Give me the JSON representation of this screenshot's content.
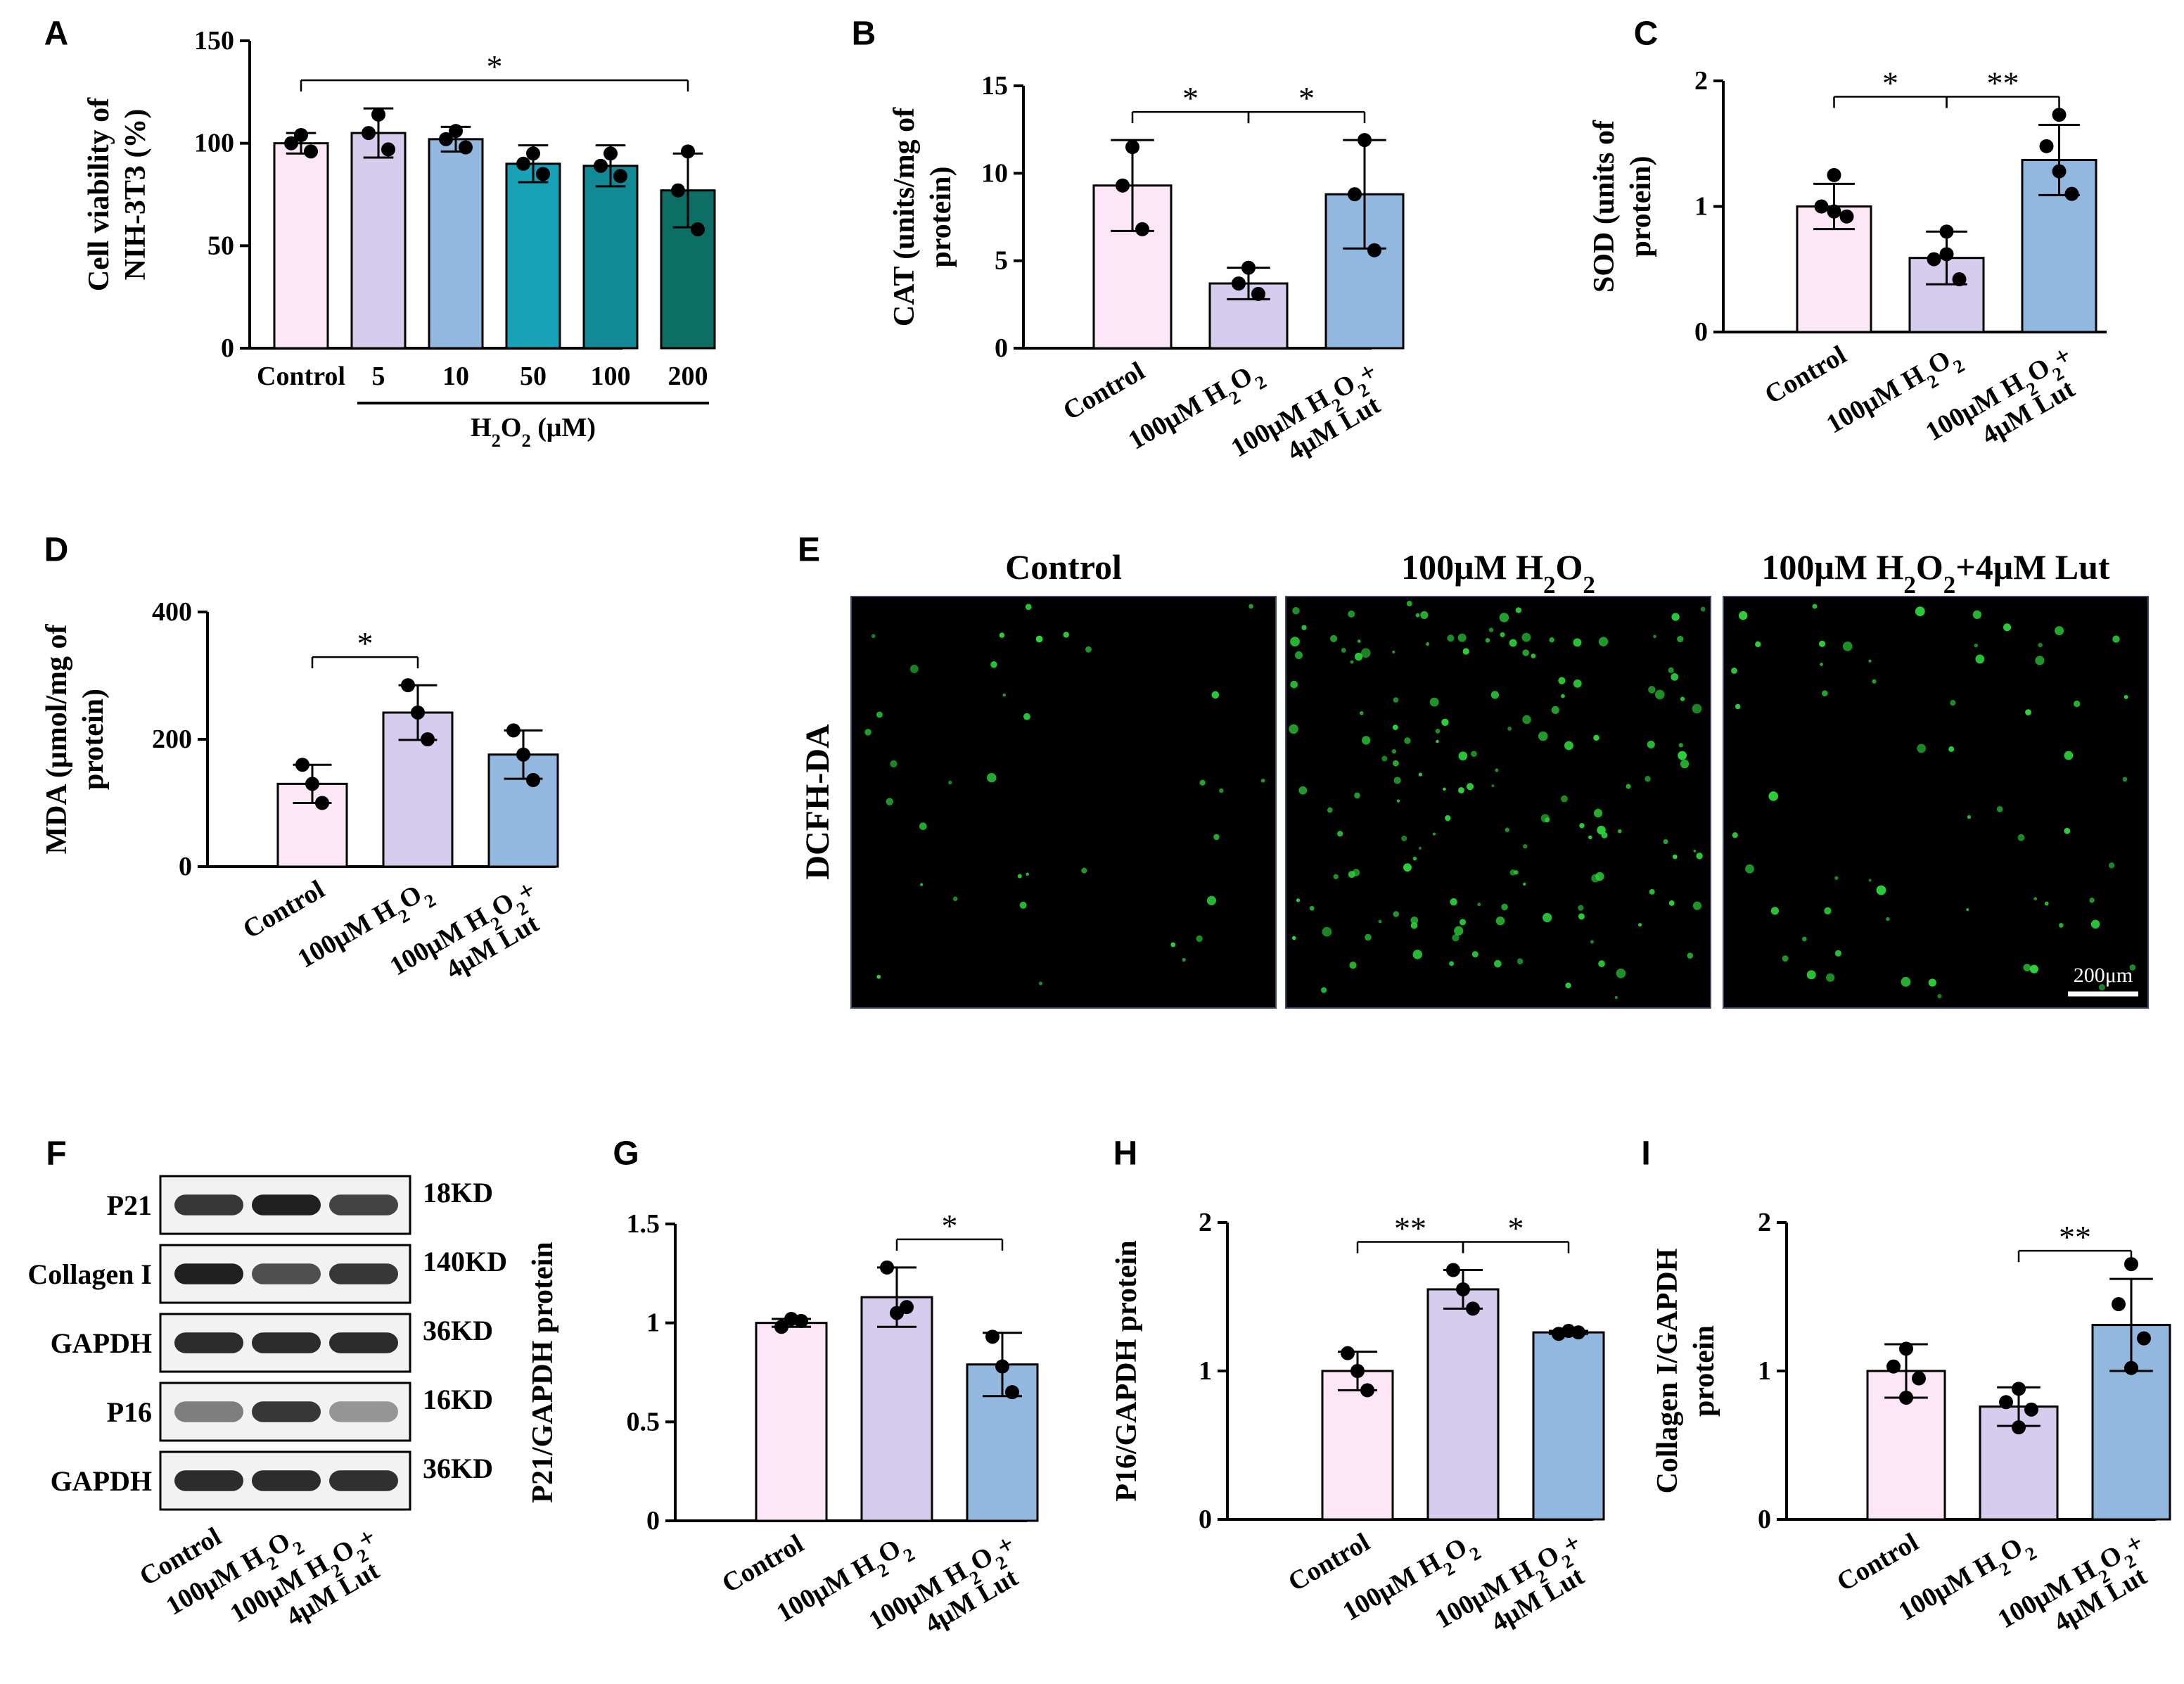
{
  "figure": {
    "colors": {
      "pink": "#fde6f6",
      "lavender": "#d6cdee",
      "lightblue": "#93b8e0",
      "teal1": "#17a2b8",
      "teal2": "#128a96",
      "teal3": "#0c6e64",
      "micro_bg": "#000000",
      "cell": "#2cd43a"
    }
  },
  "chart_data": [
    {
      "panel": "A",
      "type": "bar",
      "ylabel_lines": [
        "Cell viability of",
        "NIH-3T3 (%)"
      ],
      "ylim": [
        0,
        150
      ],
      "yticks": [
        "0",
        "50",
        "100",
        "150"
      ],
      "categories": [
        "Control",
        "5",
        "10",
        "50",
        "100",
        "200"
      ],
      "group_label": "H2O2 (μM)",
      "values": [
        100,
        105,
        102,
        90,
        89,
        77
      ],
      "errors": [
        5,
        12,
        6,
        9,
        10,
        18
      ],
      "points": [
        [
          100,
          96,
          104
        ],
        [
          105,
          97,
          114
        ],
        [
          102,
          98,
          106
        ],
        [
          90,
          85,
          95
        ],
        [
          89,
          84,
          95
        ],
        [
          77,
          58,
          96
        ]
      ],
      "colors": [
        "#fde6f6",
        "#d6cdee",
        "#93b8e0",
        "#17a2b8",
        "#128a96",
        "#0c6e64"
      ],
      "significance": [
        {
          "from": 0,
          "to": 5,
          "label": "*"
        }
      ]
    },
    {
      "panel": "B",
      "type": "bar",
      "ylabel_lines": [
        "CAT (units/mg of",
        "protein)"
      ],
      "ylim": [
        0,
        15
      ],
      "yticks": [
        "0",
        "5",
        "10",
        "15"
      ],
      "categories": [
        "Control",
        "100μM H2O2",
        "100μM H2O2+|4μM Lut"
      ],
      "values": [
        9.3,
        3.7,
        8.8
      ],
      "errors": [
        2.6,
        0.9,
        3.1
      ],
      "points": [
        [
          9.3,
          6.8,
          11.5
        ],
        [
          3.7,
          3.1,
          4.6
        ],
        [
          8.8,
          5.6,
          11.9
        ]
      ],
      "colors": [
        "#fde6f6",
        "#d6cdee",
        "#93b8e0"
      ],
      "significance": [
        {
          "from": 0,
          "to": 1,
          "label": "*"
        },
        {
          "from": 1,
          "to": 2,
          "label": "*"
        }
      ]
    },
    {
      "panel": "C",
      "type": "bar",
      "ylabel_lines": [
        "SOD (units of",
        "protein)"
      ],
      "ylim": [
        0,
        2
      ],
      "yticks": [
        "0",
        "1",
        "2"
      ],
      "categories": [
        "Control",
        "100μM H2O2",
        "100μM H2O2+|4μM Lut"
      ],
      "values": [
        1.0,
        0.59,
        1.37
      ],
      "errors": [
        0.18,
        0.21,
        0.28
      ],
      "points": [
        [
          1.25,
          1.0,
          0.92,
          0.96
        ],
        [
          0.8,
          0.58,
          0.42,
          0.62
        ],
        [
          1.73,
          1.48,
          1.1,
          1.28
        ]
      ],
      "colors": [
        "#fde6f6",
        "#d6cdee",
        "#93b8e0"
      ],
      "significance": [
        {
          "from": 0,
          "to": 1,
          "label": "*"
        },
        {
          "from": 1,
          "to": 2,
          "label": "**"
        }
      ]
    },
    {
      "panel": "D",
      "type": "bar",
      "ylabel_lines": [
        "MDA (μmol/mg of",
        "protein)"
      ],
      "ylim": [
        0,
        400
      ],
      "yticks": [
        "0",
        "200",
        "400"
      ],
      "categories": [
        "Control",
        "100μM H2O2",
        "100μM H2O2+|4μM Lut"
      ],
      "values": [
        130,
        242,
        176
      ],
      "errors": [
        30,
        43,
        38
      ],
      "points": [
        [
          160,
          100,
          130
        ],
        [
          285,
          200,
          242
        ],
        [
          214,
          136,
          176
        ]
      ],
      "colors": [
        "#fde6f6",
        "#d6cdee",
        "#93b8e0"
      ],
      "significance": [
        {
          "from": 0,
          "to": 1,
          "label": "*"
        }
      ]
    },
    {
      "panel": "G",
      "type": "bar",
      "ylabel_lines": [
        "P21/GAPDH protein"
      ],
      "ylim": [
        0,
        1.5
      ],
      "yticks": [
        "0",
        "0.5",
        "1",
        "1.5"
      ],
      "categories": [
        "Control",
        "100μM H2O2",
        "100μM H2O2+|4μM Lut"
      ],
      "values": [
        1.0,
        1.13,
        0.79
      ],
      "errors": [
        0.02,
        0.15,
        0.16
      ],
      "points": [
        [
          0.98,
          1.01,
          1.02
        ],
        [
          1.28,
          1.08,
          1.05
        ],
        [
          0.93,
          0.65,
          0.78
        ]
      ],
      "colors": [
        "#fde6f6",
        "#d6cdee",
        "#93b8e0"
      ],
      "significance": [
        {
          "from": 1,
          "to": 2,
          "label": "*"
        }
      ]
    },
    {
      "panel": "H",
      "type": "bar",
      "ylabel_lines": [
        "P16/GAPDH protein"
      ],
      "ylim": [
        0,
        2
      ],
      "yticks": [
        "0",
        "1",
        "2"
      ],
      "categories": [
        "Control",
        "100μM H2O2",
        "100μM H2O2+|4μM Lut"
      ],
      "values": [
        1.0,
        1.55,
        1.26
      ],
      "errors": [
        0.13,
        0.13,
        0.01
      ],
      "points": [
        [
          1.12,
          0.87,
          1.0
        ],
        [
          1.68,
          1.42,
          1.55
        ],
        [
          1.25,
          1.26,
          1.27
        ]
      ],
      "colors": [
        "#fde6f6",
        "#d6cdee",
        "#93b8e0"
      ],
      "significance": [
        {
          "from": 0,
          "to": 1,
          "label": "**"
        },
        {
          "from": 1,
          "to": 2,
          "label": "*"
        }
      ]
    },
    {
      "panel": "I",
      "type": "bar",
      "ylabel_lines": [
        "Collagen I/GAPDH",
        "protein"
      ],
      "ylim": [
        0,
        2
      ],
      "yticks": [
        "0",
        "1",
        "2"
      ],
      "categories": [
        "Control",
        "100μM H2O2",
        "100μM H2O2+|4μM Lut"
      ],
      "values": [
        1.0,
        0.76,
        1.31
      ],
      "errors": [
        0.18,
        0.13,
        0.31
      ],
      "points": [
        [
          1.15,
          1.03,
          0.95,
          0.82
        ],
        [
          0.88,
          0.79,
          0.74,
          0.62
        ],
        [
          1.72,
          1.45,
          1.22,
          1.02
        ]
      ],
      "colors": [
        "#fde6f6",
        "#d6cdee",
        "#93b8e0"
      ],
      "significance": [
        {
          "from": 1,
          "to": 2,
          "label": "**"
        }
      ]
    }
  ],
  "panel_labels": [
    "A",
    "B",
    "C",
    "D",
    "E",
    "F",
    "G",
    "H",
    "I"
  ],
  "micrograph": {
    "panel": "E",
    "row_label": "DCFH-DA",
    "titles": [
      "Control",
      "100μM H2O2",
      "100μM H2O2+4μM Lut"
    ],
    "cell_counts": [
      35,
      150,
      60
    ],
    "scale_bar": "200μm"
  },
  "western_blot": {
    "panel": "F",
    "rows": [
      {
        "protein": "P21",
        "size": "18KD",
        "intensity": [
          0.85,
          0.95,
          0.8
        ]
      },
      {
        "protein": "Collagen I",
        "size": "140KD",
        "intensity": [
          0.95,
          0.75,
          0.85
        ]
      },
      {
        "protein": "GAPDH",
        "size": "36KD",
        "intensity": [
          0.9,
          0.9,
          0.9
        ]
      },
      {
        "protein": "P16",
        "size": "16KD",
        "intensity": [
          0.55,
          0.85,
          0.45
        ]
      },
      {
        "protein": "GAPDH",
        "size": "36KD",
        "intensity": [
          0.9,
          0.9,
          0.88
        ]
      }
    ],
    "lanes": [
      "Control",
      "100μM H2O2",
      "100μM H2O2+|4μM Lut"
    ]
  }
}
